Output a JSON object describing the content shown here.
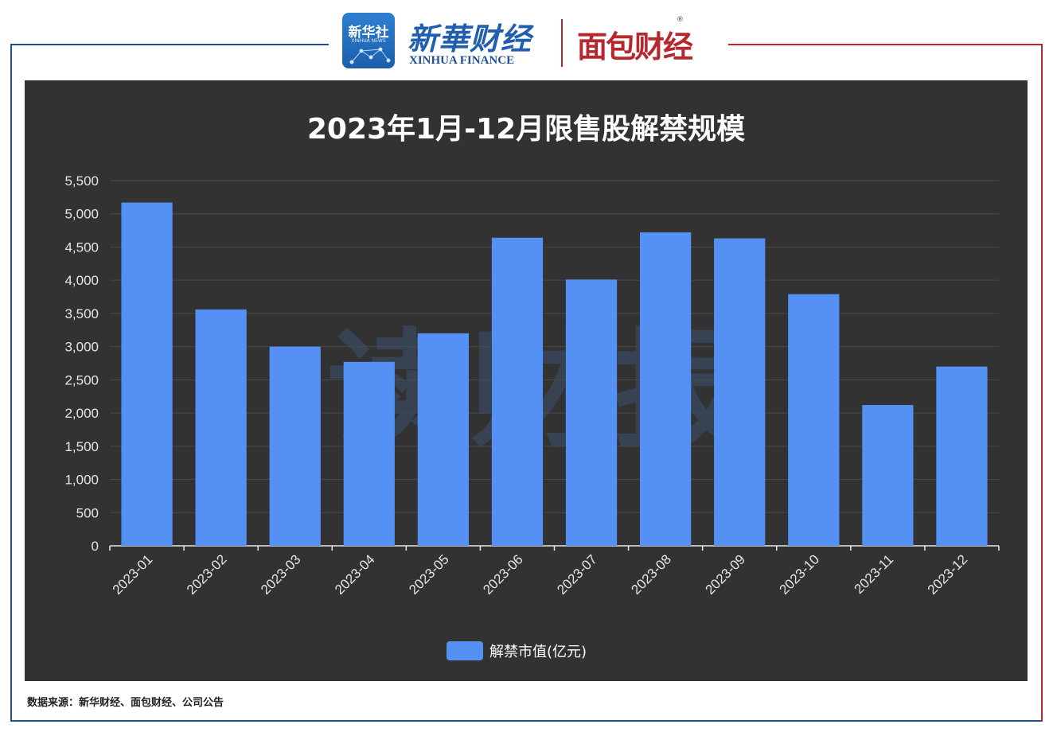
{
  "brand": {
    "xinhua_badge_cn": "新华社",
    "xinhua_badge_en": "XINHUA NEWS",
    "xinhua_finance_cn": "新華财经",
    "xinhua_finance_en": "XINHUA FINANCE",
    "mianbao_logo": "面包财经",
    "registered_mark": "®",
    "frame_left_color": "#1f4f8f",
    "frame_right_color": "#b7282e"
  },
  "watermark": "读财报",
  "chart_data": {
    "type": "bar",
    "title": "2023年1月-12月限售股解禁规模",
    "categories": [
      "2023-01",
      "2023-02",
      "2023-03",
      "2023-04",
      "2023-05",
      "2023-06",
      "2023-07",
      "2023-08",
      "2023-09",
      "2023-10",
      "2023-11",
      "2023-12"
    ],
    "series": [
      {
        "name": "解禁市值(亿元)",
        "values": [
          5170,
          3560,
          3000,
          2770,
          3200,
          4640,
          4010,
          4720,
          4630,
          3790,
          2120,
          2700
        ],
        "color": "#5591f5"
      }
    ],
    "ylim": [
      0,
      5500
    ],
    "yticks": [
      "0",
      "500",
      "1,000",
      "1,500",
      "2,000",
      "2,500",
      "3,000",
      "3,500",
      "4,000",
      "4,500",
      "5,000",
      "5,500"
    ],
    "ytick_values": [
      0,
      500,
      1000,
      1500,
      2000,
      2500,
      3000,
      3500,
      4000,
      4500,
      5000,
      5500
    ],
    "grid": true,
    "legend": "bottom-center",
    "background": "#323232"
  },
  "source_note": "数据来源：新华财经、面包财经、公司公告"
}
